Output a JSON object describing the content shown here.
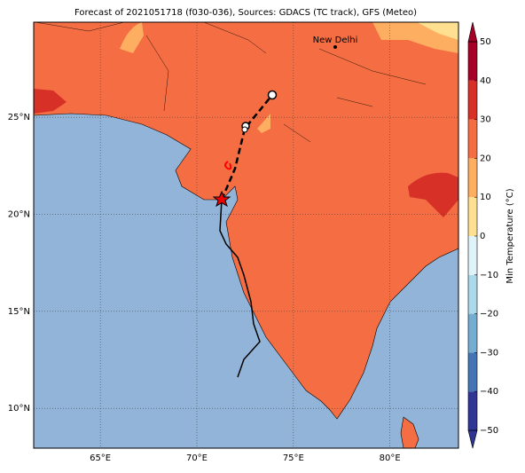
{
  "title": "Forecast of 2021051718 (f030-036), Sources: GDACS (TC track), GFS (Meteo)",
  "map": {
    "xlim": [
      61.55,
      83.55
    ],
    "ylim": [
      7.95,
      29.9
    ],
    "xticks": [
      {
        "value": 65,
        "label": "65°E"
      },
      {
        "value": 70,
        "label": "70°E"
      },
      {
        "value": 75,
        "label": "75°E"
      },
      {
        "value": 80,
        "label": "80°E"
      }
    ],
    "yticks": [
      {
        "value": 10,
        "label": "10°N"
      },
      {
        "value": 15,
        "label": "15°N"
      },
      {
        "value": 20,
        "label": "20°N"
      },
      {
        "value": 25,
        "label": "25°N"
      }
    ],
    "city": "New Delhi"
  },
  "colorbar": {
    "label": "Min Temperature (°C)",
    "lim": [
      -50,
      50
    ],
    "ticks": [
      {
        "value": -50,
        "label": "−50"
      },
      {
        "value": -40,
        "label": "−40"
      },
      {
        "value": -30,
        "label": "−30"
      },
      {
        "value": -20,
        "label": "−20"
      },
      {
        "value": -10,
        "label": "−10"
      },
      0,
      10,
      20,
      30,
      40,
      50
    ],
    "colors": [
      "#313695",
      "#4575b4",
      "#74add1",
      "#abd9e9",
      "#e0f3f8",
      "#fee090",
      "#fdae61",
      "#f46d43",
      "#d73027",
      "#a50026"
    ]
  }
}
